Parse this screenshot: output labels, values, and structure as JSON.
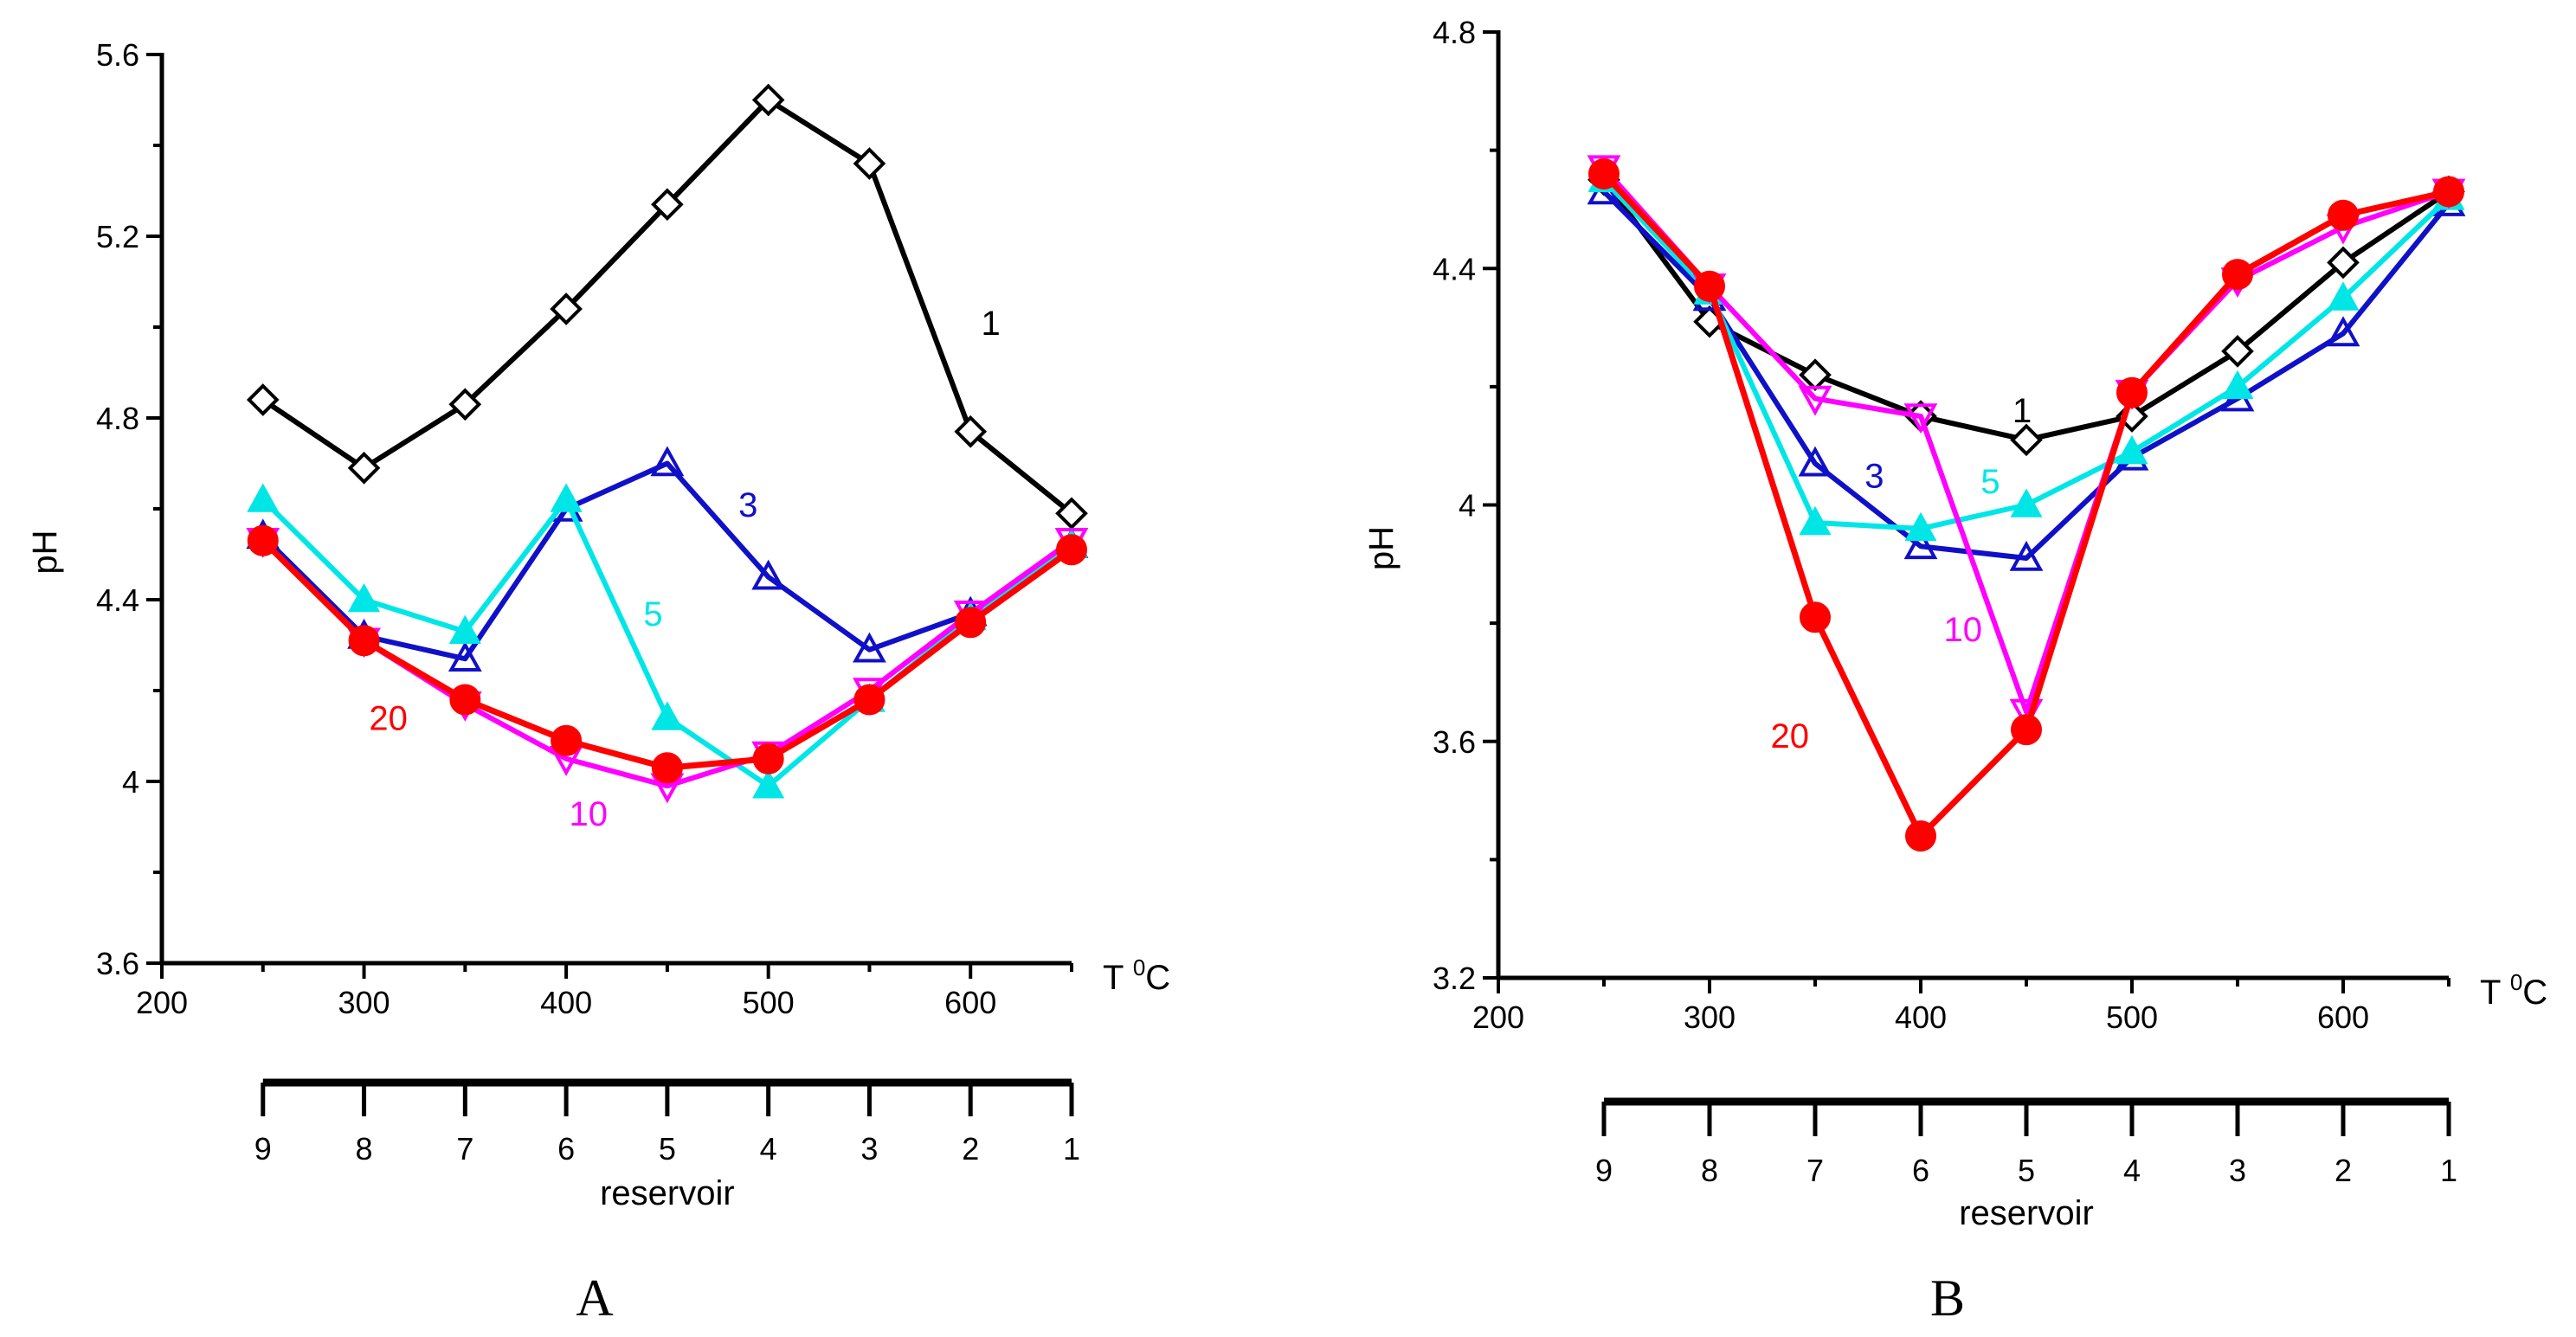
{
  "colors": {
    "axis": "#000000",
    "series_1": "#000000",
    "series_3": "#1010c8",
    "series_5": "#00e6e6",
    "series_10": "#ff00ff",
    "series_20": "#ff0000"
  },
  "chart_data": [
    {
      "type": "line",
      "panel_label": "A",
      "ylabel": "pH",
      "xlabel": "T 0C",
      "xlabel_main": "T ",
      "xlabel_sup": "0",
      "xlabel_unit": "C",
      "xlim": [
        200,
        650
      ],
      "ylim": [
        3.6,
        5.6
      ],
      "x_ticks": [
        200,
        300,
        400,
        500,
        600
      ],
      "x_tick_labels": [
        "200",
        "300",
        "400",
        "500",
        "600"
      ],
      "y_ticks": [
        3.6,
        4.0,
        4.4,
        4.8,
        5.2,
        5.6
      ],
      "y_tick_labels": [
        "3.6",
        "4",
        "4.4",
        "4.8",
        "5.2",
        "5.6"
      ],
      "reservoir_axis": {
        "label": "reservoir",
        "x_positions": [
          250,
          300,
          350,
          400,
          450,
          500,
          550,
          600,
          650
        ],
        "labels": [
          "9",
          "8",
          "7",
          "6",
          "5",
          "4",
          "3",
          "2",
          "1"
        ]
      },
      "x": [
        250,
        300,
        350,
        400,
        450,
        500,
        550,
        600,
        650
      ],
      "series": [
        {
          "name": "1",
          "color": "#000000",
          "marker": "diamond",
          "values": [
            4.84,
            4.69,
            4.83,
            5.04,
            5.27,
            5.5,
            5.36,
            4.77,
            4.59
          ],
          "label_at": [
            610,
            5.01
          ]
        },
        {
          "name": "3",
          "color": "#1010c8",
          "marker": "triangle-up",
          "values": [
            4.54,
            4.32,
            4.27,
            4.6,
            4.7,
            4.45,
            4.29,
            4.37,
            4.52
          ],
          "label_at": [
            490,
            4.61
          ]
        },
        {
          "name": "5",
          "color": "#00e6e6",
          "marker": "triangle-up-filled",
          "values": [
            4.62,
            4.4,
            4.33,
            4.62,
            4.14,
            3.99,
            4.18,
            4.36,
            4.52
          ],
          "label_at": [
            443,
            4.37
          ]
        },
        {
          "name": "10",
          "color": "#ff00ff",
          "marker": "triangle-down",
          "values": [
            4.53,
            4.31,
            4.17,
            4.05,
            3.99,
            4.06,
            4.2,
            4.37,
            4.53
          ],
          "label_at": [
            411,
            3.93
          ]
        },
        {
          "name": "20",
          "color": "#ff0000",
          "marker": "circle",
          "values": [
            4.53,
            4.31,
            4.18,
            4.09,
            4.03,
            4.05,
            4.18,
            4.35,
            4.51
          ],
          "label_at": [
            312,
            4.14
          ]
        }
      ]
    },
    {
      "type": "line",
      "panel_label": "B",
      "ylabel": "pH",
      "xlabel": "T 0C",
      "xlabel_main": "T ",
      "xlabel_sup": "0",
      "xlabel_unit": "C",
      "xlim": [
        200,
        650
      ],
      "ylim": [
        3.2,
        4.8
      ],
      "x_ticks": [
        200,
        300,
        400,
        500,
        600
      ],
      "x_tick_labels": [
        "200",
        "300",
        "400",
        "500",
        "600"
      ],
      "y_ticks": [
        3.2,
        3.6,
        4.0,
        4.4,
        4.8
      ],
      "y_tick_labels": [
        "3.2",
        "3.6",
        "4",
        "4.4",
        "4.8"
      ],
      "reservoir_axis": {
        "label": "reservoir",
        "x_positions": [
          250,
          300,
          350,
          400,
          450,
          500,
          550,
          600,
          650
        ],
        "labels": [
          "9",
          "8",
          "7",
          "6",
          "5",
          "4",
          "3",
          "2",
          "1"
        ]
      },
      "x": [
        250,
        300,
        350,
        400,
        450,
        500,
        550,
        600,
        650
      ],
      "series": [
        {
          "name": "1",
          "color": "#000000",
          "marker": "diamond",
          "values": [
            4.55,
            4.31,
            4.22,
            4.15,
            4.11,
            4.15,
            4.26,
            4.41,
            4.53
          ],
          "label_at": [
            448,
            4.16
          ]
        },
        {
          "name": "3",
          "color": "#1010c8",
          "marker": "triangle-up",
          "values": [
            4.53,
            4.35,
            4.07,
            3.93,
            3.91,
            4.08,
            4.18,
            4.29,
            4.51
          ],
          "label_at": [
            378,
            4.05
          ]
        },
        {
          "name": "5",
          "color": "#00e6e6",
          "marker": "triangle-up-filled",
          "values": [
            4.55,
            4.36,
            3.97,
            3.96,
            4.0,
            4.09,
            4.2,
            4.35,
            4.52
          ],
          "label_at": [
            433,
            4.04
          ]
        },
        {
          "name": "10",
          "color": "#ff00ff",
          "marker": "triangle-down",
          "values": [
            4.57,
            4.37,
            4.18,
            4.15,
            3.65,
            4.19,
            4.38,
            4.47,
            4.53
          ],
          "label_at": [
            420,
            3.79
          ]
        },
        {
          "name": "20",
          "color": "#ff0000",
          "marker": "circle",
          "values": [
            4.56,
            4.37,
            3.81,
            3.44,
            3.62,
            4.19,
            4.39,
            4.49,
            4.53
          ],
          "label_at": [
            338,
            3.61
          ]
        }
      ]
    }
  ]
}
